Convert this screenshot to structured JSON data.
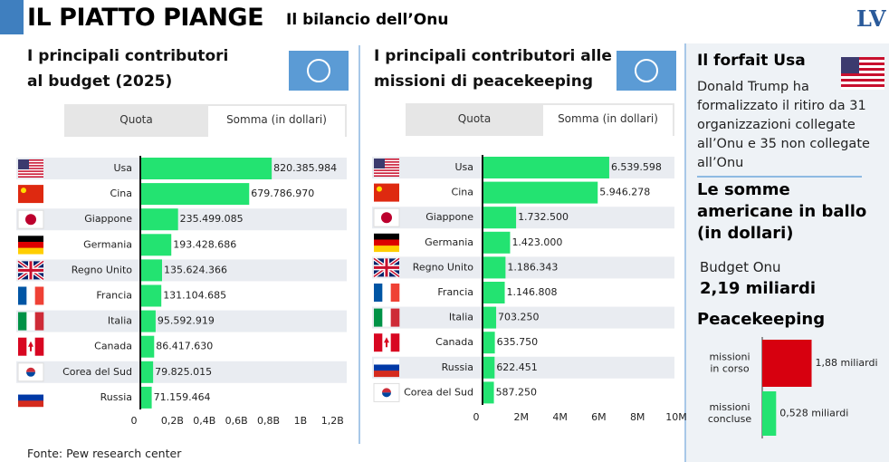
{
  "header": {
    "title": "IL PIATTO PIANGE",
    "subtitle": "Il bilancio dell’Onu",
    "logo": "LV"
  },
  "chart_data": [
    {
      "type": "bar",
      "title": "I principali contributori al budget (2025)",
      "tabs": [
        "Quota",
        "Somma (in dollari)"
      ],
      "categories": [
        "Usa",
        "Cina",
        "Giappone",
        "Germania",
        "Regno Unito",
        "Francia",
        "Italia",
        "Canada",
        "Corea del Sud",
        "Russia"
      ],
      "values": [
        820385984,
        679786970,
        235499085,
        193428686,
        135624366,
        131104685,
        95592919,
        86417630,
        79825015,
        71159464
      ],
      "value_labels": [
        "820.385.984",
        "679.786.970",
        "235.499.085",
        "193.428.686",
        "135.624.366",
        "131.104.685",
        "95.592.919",
        "86.417.630",
        "79.825.015",
        "71.159.464"
      ],
      "color": "#23e371",
      "xlim": [
        0,
        1300000000
      ],
      "xticks": [
        0,
        {
          "value": 200000000,
          "label": "0,2B"
        },
        {
          "value": 400000000,
          "label": "0,4B"
        },
        {
          "value": 600000000,
          "label": "0,6B"
        },
        {
          "value": 800000000,
          "label": "0,8B"
        },
        {
          "value": 1000000000,
          "label": "1B"
        },
        {
          "value": 1200000000,
          "label": "1,2B"
        }
      ]
    },
    {
      "type": "bar",
      "title": "I principali contributori alle missioni di peacekeeping",
      "tabs": [
        "Quota",
        "Somma (in dollari)"
      ],
      "categories": [
        "Usa",
        "Cina",
        "Giappone",
        "Germania",
        "Regno Unito",
        "Francia",
        "Italia",
        "Canada",
        "Russia",
        "Corea del Sud"
      ],
      "values": [
        6539598,
        5946278,
        1732500,
        1423000,
        1186343,
        1146808,
        703250,
        635750,
        622451,
        587250
      ],
      "value_labels": [
        "6.539.598",
        "5.946.278",
        "1.732.500",
        "1.423.000",
        "1.186.343",
        "1.146.808",
        "703.250",
        "635.750",
        "622.451",
        "587.250"
      ],
      "color": "#23e371",
      "xlim": [
        0,
        10000000
      ],
      "xticks": [
        0,
        {
          "value": 2000000,
          "label": "2M"
        },
        {
          "value": 4000000,
          "label": "4M"
        },
        {
          "value": 6000000,
          "label": "6M"
        },
        {
          "value": 8000000,
          "label": "8M"
        },
        {
          "value": 10000000,
          "label": "10M"
        }
      ]
    },
    {
      "type": "bar",
      "title": "Peacekeeping",
      "categories": [
        "missioni in corso",
        "missioni concluse"
      ],
      "values": [
        1.88,
        0.528
      ],
      "value_labels": [
        "1,88 miliardi",
        "0,528 miliardi"
      ],
      "colors": [
        "#d7000f",
        "#23e371"
      ]
    }
  ],
  "sidebar": {
    "title": "Il forfait Usa",
    "text": "Donald Trump ha formalizzato il ritiro da 31 organizzazioni collegate all’Onu e 35 non collegate all’Onu",
    "subtitle": "Le somme americane in ballo (in dollari)",
    "budget_label": "Budget Onu",
    "budget_value": "2,19 miliardi"
  },
  "source": "Fonte: Pew research center"
}
